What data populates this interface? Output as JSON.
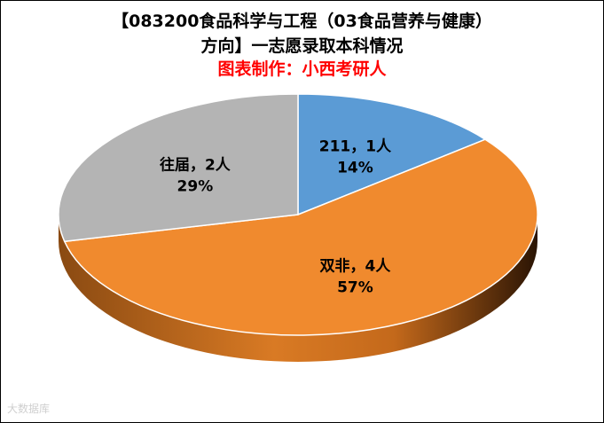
{
  "chart_data": {
    "type": "pie",
    "title_line1": "【083200食品科学与工程（03食品营养与健康）",
    "title_line2": "方向】一志愿录取本科情况",
    "subtitle": "图表制作：小西考研人",
    "slices": [
      {
        "name": "211",
        "value": 1,
        "unit": "人",
        "percent": "14%",
        "color": "#5b9bd5"
      },
      {
        "name": "双非",
        "value": 4,
        "unit": "人",
        "percent": "57%",
        "color": "#f08a2e"
      },
      {
        "name": "往届",
        "value": 2,
        "unit": "人",
        "percent": "29%",
        "color": "#b4b4b4"
      }
    ],
    "legend": "none"
  },
  "watermark": "大数据库"
}
